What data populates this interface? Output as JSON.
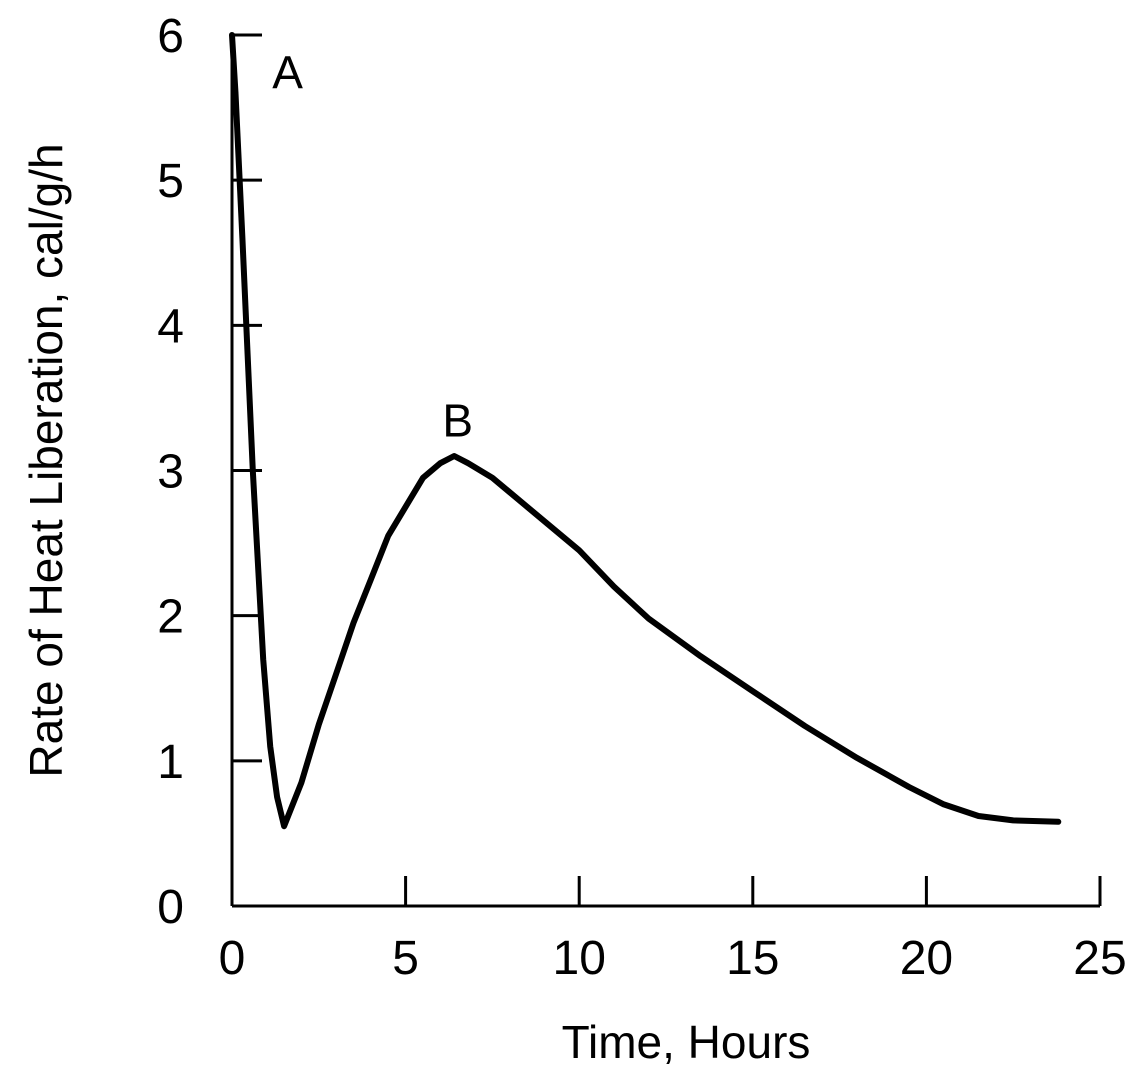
{
  "chart_data": {
    "type": "line",
    "xlabel": "Time, Hours",
    "ylabel": "Rate of Heat Liberation, cal/g/h",
    "xlim": [
      0,
      25
    ],
    "ylim": [
      0,
      6
    ],
    "x_ticks": [
      "0",
      "5",
      "10",
      "15",
      "20",
      "25"
    ],
    "y_ticks": [
      "0",
      "1",
      "2",
      "3",
      "4",
      "5",
      "6"
    ],
    "grid": false,
    "series": [
      {
        "x": [
          0.0,
          0.1,
          0.3,
          0.6,
          0.9,
          1.1,
          1.3,
          1.5,
          2.0,
          2.5,
          3.0,
          3.5,
          4.0,
          4.5,
          5.0,
          5.5,
          6.0,
          6.4,
          6.8,
          7.5,
          8.5,
          10.0,
          11.0,
          12.0,
          13.5,
          15.0,
          16.5,
          18.0,
          19.5,
          20.5,
          21.5,
          22.5,
          23.8
        ],
        "y": [
          6.0,
          5.6,
          4.6,
          3.0,
          1.7,
          1.1,
          0.75,
          0.55,
          0.85,
          1.25,
          1.6,
          1.95,
          2.25,
          2.55,
          2.75,
          2.95,
          3.05,
          3.1,
          3.05,
          2.95,
          2.75,
          2.45,
          2.2,
          1.98,
          1.72,
          1.48,
          1.24,
          1.02,
          0.82,
          0.7,
          0.62,
          0.59,
          0.58
        ]
      }
    ],
    "annotations": [
      {
        "text": "A",
        "x": 1.6,
        "y": 5.75
      },
      {
        "text": "B",
        "x": 6.5,
        "y": 3.35
      }
    ]
  }
}
